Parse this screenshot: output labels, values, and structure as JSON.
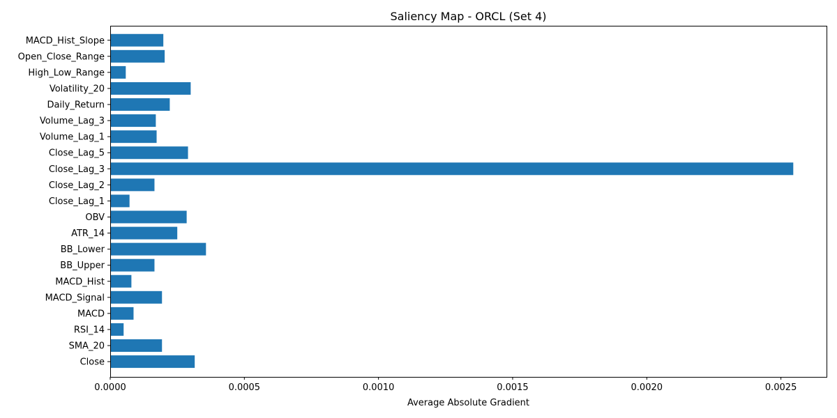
{
  "chart_data": {
    "type": "bar",
    "orientation": "horizontal",
    "title": "Saliency Map - ORCL (Set 4)",
    "xlabel": "Average Absolute Gradient",
    "ylabel": "",
    "xlim": [
      0,
      0.00267
    ],
    "xticks": [
      {
        "value": 0.0,
        "label": "0.0000"
      },
      {
        "value": 0.0005,
        "label": "0.0005"
      },
      {
        "value": 0.001,
        "label": "0.0010"
      },
      {
        "value": 0.0015,
        "label": "0.0015"
      },
      {
        "value": 0.002,
        "label": "0.0020"
      },
      {
        "value": 0.0025,
        "label": "0.0025"
      }
    ],
    "categories": [
      "Close",
      "SMA_20",
      "RSI_14",
      "MACD",
      "MACD_Signal",
      "MACD_Hist",
      "BB_Upper",
      "BB_Lower",
      "ATR_14",
      "OBV",
      "Close_Lag_1",
      "Close_Lag_2",
      "Close_Lag_3",
      "Close_Lag_5",
      "Volume_Lag_1",
      "Volume_Lag_3",
      "Daily_Return",
      "Volatility_20",
      "High_Low_Range",
      "Open_Close_Range",
      "MACD_Hist_Slope"
    ],
    "values": [
      0.000315,
      0.000193,
      5e-05,
      8.7e-05,
      0.000193,
      7.9e-05,
      0.000165,
      0.000357,
      0.00025,
      0.000285,
      7.2e-05,
      0.000165,
      0.002546,
      0.00029,
      0.000173,
      0.00017,
      0.000222,
      0.0003,
      5.8e-05,
      0.000203,
      0.000198
    ],
    "bar_color": "#1f77b4",
    "grid": false,
    "legend": "none"
  }
}
